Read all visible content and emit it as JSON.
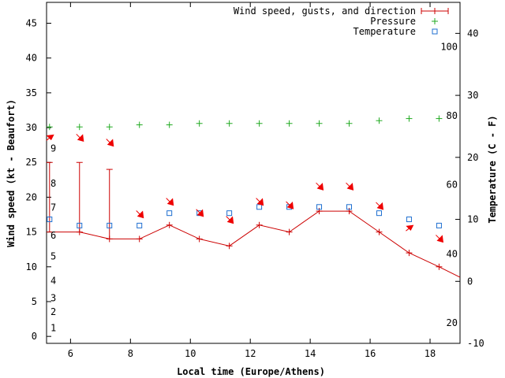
{
  "chart_data": {
    "type": "line",
    "xlabel": "Local time (Europe/Athens)",
    "ylabel_left": "Wind speed (kt - Beaufort)",
    "ylabel_right": "Temperature (C - F)",
    "xlim": [
      5.2,
      19.0
    ],
    "ylim_left": [
      -1,
      48
    ],
    "ylim_right": [
      -10,
      45
    ],
    "x_ticks": [
      6,
      8,
      10,
      12,
      14,
      16,
      18
    ],
    "y_left_ticks": [
      0,
      5,
      10,
      15,
      20,
      25,
      30,
      35,
      40,
      45
    ],
    "y_right_ticks": [
      -10,
      0,
      10,
      20,
      30,
      40
    ],
    "beaufort_labels": [
      {
        "text": "1",
        "y": 1.2
      },
      {
        "text": "2",
        "y": 3.5
      },
      {
        "text": "3",
        "y": 5.5
      },
      {
        "text": "4",
        "y": 8.0
      },
      {
        "text": "5",
        "y": 11.5
      },
      {
        "text": "6",
        "y": 14.5
      },
      {
        "text": "7",
        "y": 18.5
      },
      {
        "text": "8",
        "y": 22.0
      },
      {
        "text": "9",
        "y": 27.0
      }
    ],
    "fahrenheit_labels": [
      {
        "text": "20",
        "y": -6.7
      },
      {
        "text": "40",
        "y": 4.4
      },
      {
        "text": "60",
        "y": 15.6
      },
      {
        "text": "80",
        "y": 26.7
      },
      {
        "text": "100",
        "y": 37.8
      }
    ],
    "legend": [
      {
        "label": "Wind speed, gusts, and direction",
        "color": "#cc0000",
        "marker": "plus-line"
      },
      {
        "label": "Pressure",
        "color": "#22aa22",
        "marker": "plus"
      },
      {
        "label": "Temperature",
        "color": "#1f6fd0",
        "marker": "square"
      }
    ],
    "colors": {
      "wind": "#cc0000",
      "pressure": "#22aa22",
      "temperature": "#1f6fd0",
      "arrow": "#ee0000"
    },
    "series": [
      {
        "name": "Wind speed, gusts, and direction",
        "axis": "left",
        "x": [
          5.0,
          6.3,
          7.3,
          8.3,
          9.3,
          10.3,
          11.3,
          12.3,
          13.3,
          14.3,
          15.3,
          16.3,
          17.3,
          18.3,
          19.0
        ],
        "y": [
          15,
          15,
          14,
          14,
          16,
          14,
          13,
          16,
          15,
          18,
          18,
          15,
          12,
          10,
          8.5
        ],
        "gusts": [
          {
            "x": 5.3,
            "y": 25
          },
          {
            "x": 6.3,
            "y": 25
          },
          {
            "x": 7.3,
            "y": 24
          }
        ]
      },
      {
        "name": "Pressure",
        "axis": "left",
        "x": [
          5.3,
          6.3,
          7.3,
          8.3,
          9.3,
          10.3,
          11.3,
          12.3,
          13.3,
          14.3,
          15.3,
          16.3,
          17.3,
          18.3
        ],
        "y": [
          30.1,
          30.1,
          30.1,
          30.4,
          30.4,
          30.6,
          30.6,
          30.6,
          30.6,
          30.6,
          30.6,
          31.0,
          31.3,
          31.3
        ]
      },
      {
        "name": "Temperature",
        "axis": "right",
        "x": [
          5.3,
          6.3,
          7.3,
          8.3,
          9.3,
          10.3,
          11.3,
          12.3,
          13.3,
          14.3,
          15.3,
          16.3,
          17.3,
          18.3
        ],
        "y": [
          10,
          9,
          9,
          9,
          11,
          11,
          11,
          12,
          12,
          12,
          12,
          11,
          10,
          9
        ]
      }
    ],
    "wind_arrows": [
      {
        "x": 5.3,
        "y": 28.5,
        "dir": "up-right"
      },
      {
        "x": 6.3,
        "y": 28.5,
        "dir": "down-right"
      },
      {
        "x": 7.3,
        "y": 27.8,
        "dir": "down-right"
      },
      {
        "x": 8.3,
        "y": 17.5,
        "dir": "down-right"
      },
      {
        "x": 9.3,
        "y": 19.3,
        "dir": "down-right"
      },
      {
        "x": 10.3,
        "y": 17.7,
        "dir": "down-right"
      },
      {
        "x": 11.3,
        "y": 16.7,
        "dir": "down-right"
      },
      {
        "x": 12.3,
        "y": 19.3,
        "dir": "down-right"
      },
      {
        "x": 13.3,
        "y": 18.8,
        "dir": "down-right"
      },
      {
        "x": 14.3,
        "y": 21.5,
        "dir": "down-right"
      },
      {
        "x": 15.3,
        "y": 21.5,
        "dir": "down-right"
      },
      {
        "x": 16.3,
        "y": 18.7,
        "dir": "down-right"
      },
      {
        "x": 17.3,
        "y": 15.5,
        "dir": "up-right"
      },
      {
        "x": 18.3,
        "y": 14.0,
        "dir": "down-right"
      }
    ]
  }
}
